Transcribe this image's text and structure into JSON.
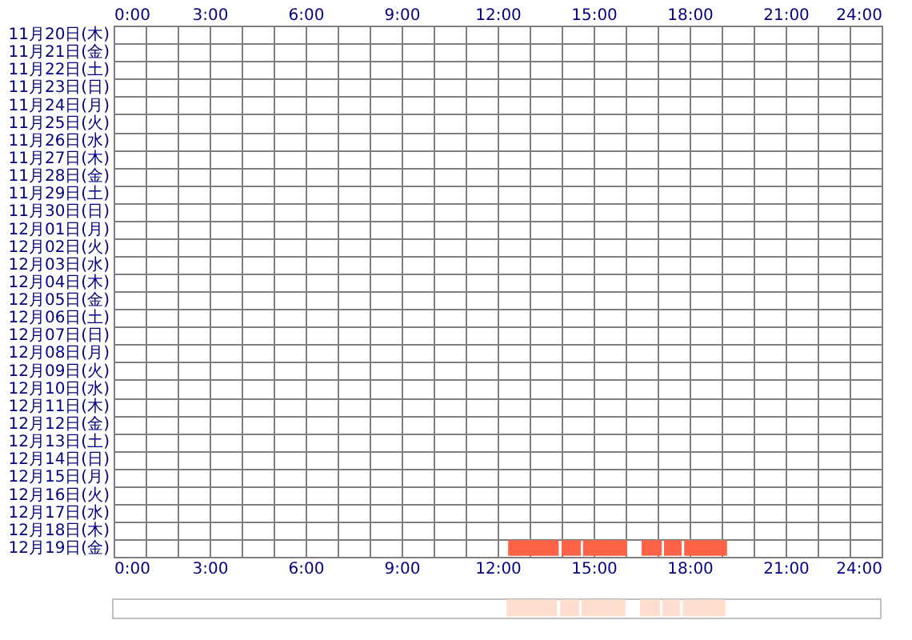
{
  "chart_data": [
    {
      "type": "bar",
      "orientation": "horizontal",
      "categories": [
        "11月20日(木)",
        "11月21日(金)",
        "11月22日(土)",
        "11月23日(日)",
        "11月24日(月)",
        "11月25日(火)",
        "11月26日(水)",
        "11月27日(木)",
        "11月28日(金)",
        "11月29日(土)",
        "11月30日(日)",
        "12月01日(月)",
        "12月02日(火)",
        "12月03日(水)",
        "12月04日(木)",
        "12月05日(金)",
        "12月06日(土)",
        "12月07日(日)",
        "12月08日(月)",
        "12月09日(火)",
        "12月10日(水)",
        "12月11日(木)",
        "12月12日(金)",
        "12月13日(土)",
        "12月14日(日)",
        "12月15日(月)",
        "12月16日(火)",
        "12月17日(水)",
        "12月18日(木)",
        "12月19日(金)"
      ],
      "series": [
        {
          "color": "#ff6347",
          "base": [
            null,
            null,
            null,
            null,
            null,
            null,
            null,
            null,
            null,
            null,
            null,
            null,
            null,
            null,
            null,
            null,
            null,
            null,
            null,
            null,
            null,
            null,
            null,
            null,
            null,
            null,
            null,
            null,
            null,
            12.33
          ],
          "values": [
            null,
            null,
            null,
            null,
            null,
            null,
            null,
            null,
            null,
            null,
            null,
            null,
            null,
            null,
            null,
            null,
            null,
            null,
            null,
            null,
            null,
            null,
            null,
            null,
            null,
            null,
            null,
            null,
            null,
            1.58
          ]
        },
        {
          "color": "#ff6347",
          "base": [
            null,
            null,
            null,
            null,
            null,
            null,
            null,
            null,
            null,
            null,
            null,
            null,
            null,
            null,
            null,
            null,
            null,
            null,
            null,
            null,
            null,
            null,
            null,
            null,
            null,
            null,
            null,
            null,
            null,
            14.0
          ],
          "values": [
            null,
            null,
            null,
            null,
            null,
            null,
            null,
            null,
            null,
            null,
            null,
            null,
            null,
            null,
            null,
            null,
            null,
            null,
            null,
            null,
            null,
            null,
            null,
            null,
            null,
            null,
            null,
            null,
            null,
            0.6
          ]
        },
        {
          "color": "#ff6347",
          "base": [
            null,
            null,
            null,
            null,
            null,
            null,
            null,
            null,
            null,
            null,
            null,
            null,
            null,
            null,
            null,
            null,
            null,
            null,
            null,
            null,
            null,
            null,
            null,
            null,
            null,
            null,
            null,
            null,
            null,
            14.67
          ],
          "values": [
            null,
            null,
            null,
            null,
            null,
            null,
            null,
            null,
            null,
            null,
            null,
            null,
            null,
            null,
            null,
            null,
            null,
            null,
            null,
            null,
            null,
            null,
            null,
            null,
            null,
            null,
            null,
            null,
            null,
            1.38
          ]
        },
        {
          "color": "#ff6347",
          "base": [
            null,
            null,
            null,
            null,
            null,
            null,
            null,
            null,
            null,
            null,
            null,
            null,
            null,
            null,
            null,
            null,
            null,
            null,
            null,
            null,
            null,
            null,
            null,
            null,
            null,
            null,
            null,
            null,
            null,
            16.5
          ],
          "values": [
            null,
            null,
            null,
            null,
            null,
            null,
            null,
            null,
            null,
            null,
            null,
            null,
            null,
            null,
            null,
            null,
            null,
            null,
            null,
            null,
            null,
            null,
            null,
            null,
            null,
            null,
            null,
            null,
            null,
            0.63
          ]
        },
        {
          "color": "#ff6347",
          "base": [
            null,
            null,
            null,
            null,
            null,
            null,
            null,
            null,
            null,
            null,
            null,
            null,
            null,
            null,
            null,
            null,
            null,
            null,
            null,
            null,
            null,
            null,
            null,
            null,
            null,
            null,
            null,
            null,
            null,
            17.2
          ],
          "values": [
            null,
            null,
            null,
            null,
            null,
            null,
            null,
            null,
            null,
            null,
            null,
            null,
            null,
            null,
            null,
            null,
            null,
            null,
            null,
            null,
            null,
            null,
            null,
            null,
            null,
            null,
            null,
            null,
            null,
            0.55
          ]
        },
        {
          "color": "#ff6347",
          "base": [
            null,
            null,
            null,
            null,
            null,
            null,
            null,
            null,
            null,
            null,
            null,
            null,
            null,
            null,
            null,
            null,
            null,
            null,
            null,
            null,
            null,
            null,
            null,
            null,
            null,
            null,
            null,
            null,
            null,
            17.83
          ],
          "values": [
            null,
            null,
            null,
            null,
            null,
            null,
            null,
            null,
            null,
            null,
            null,
            null,
            null,
            null,
            null,
            null,
            null,
            null,
            null,
            null,
            null,
            null,
            null,
            null,
            null,
            null,
            null,
            null,
            null,
            1.34
          ]
        }
      ],
      "xlim": [
        0,
        24
      ],
      "xticks": [
        {
          "value": 0,
          "label": "0:00"
        },
        {
          "value": 1,
          "label": null
        },
        {
          "value": 2,
          "label": null
        },
        {
          "value": 3,
          "label": "3:00"
        },
        {
          "value": 4,
          "label": null
        },
        {
          "value": 5,
          "label": null
        },
        {
          "value": 6,
          "label": "6:00"
        },
        {
          "value": 7,
          "label": null
        },
        {
          "value": 8,
          "label": null
        },
        {
          "value": 9,
          "label": "9:00"
        },
        {
          "value": 10,
          "label": null
        },
        {
          "value": 11,
          "label": null
        },
        {
          "value": 12,
          "label": "12:00"
        },
        {
          "value": 13,
          "label": null
        },
        {
          "value": 14,
          "label": null
        },
        {
          "value": 15,
          "label": "15:00"
        },
        {
          "value": 16,
          "label": null
        },
        {
          "value": 17,
          "label": null
        },
        {
          "value": 18,
          "label": "18:00"
        },
        {
          "value": 19,
          "label": null
        },
        {
          "value": 20,
          "label": null
        },
        {
          "value": 21,
          "label": "21:00"
        },
        {
          "value": 22,
          "label": null
        },
        {
          "value": 23,
          "label": null
        },
        {
          "value": 24,
          "label": "24:00"
        }
      ],
      "x2lim": [
        0,
        24
      ],
      "x2ticks": [
        {
          "value": 0,
          "label": "0:00"
        },
        {
          "value": 3,
          "label": "3:00"
        },
        {
          "value": 6,
          "label": "6:00"
        },
        {
          "value": 9,
          "label": "9:00"
        },
        {
          "value": 12,
          "label": "12:00"
        },
        {
          "value": 15,
          "label": "15:00"
        },
        {
          "value": 18,
          "label": "18:00"
        },
        {
          "value": 21,
          "label": "21:00"
        },
        {
          "value": 24,
          "label": "24:00"
        }
      ],
      "grid": true
    },
    {
      "type": "bar",
      "orientation": "horizontal",
      "categories": [
        null
      ],
      "series": [
        {
          "color": "#ffe0d0",
          "base": [
            12.33
          ],
          "values": [
            1.58
          ]
        },
        {
          "color": "#ffe0d0",
          "base": [
            14.0
          ],
          "values": [
            0.6
          ]
        },
        {
          "color": "#ffe0d0",
          "base": [
            14.67
          ],
          "values": [
            1.38
          ]
        },
        {
          "color": "#ffe0d0",
          "base": [
            16.5
          ],
          "values": [
            0.63
          ]
        },
        {
          "color": "#ffe0d0",
          "base": [
            17.2
          ],
          "values": [
            0.55
          ]
        },
        {
          "color": "#ffe0d0",
          "base": [
            17.83
          ],
          "values": [
            1.34
          ]
        }
      ],
      "xlim": [
        0,
        24
      ],
      "tick_labels": false
    }
  ]
}
